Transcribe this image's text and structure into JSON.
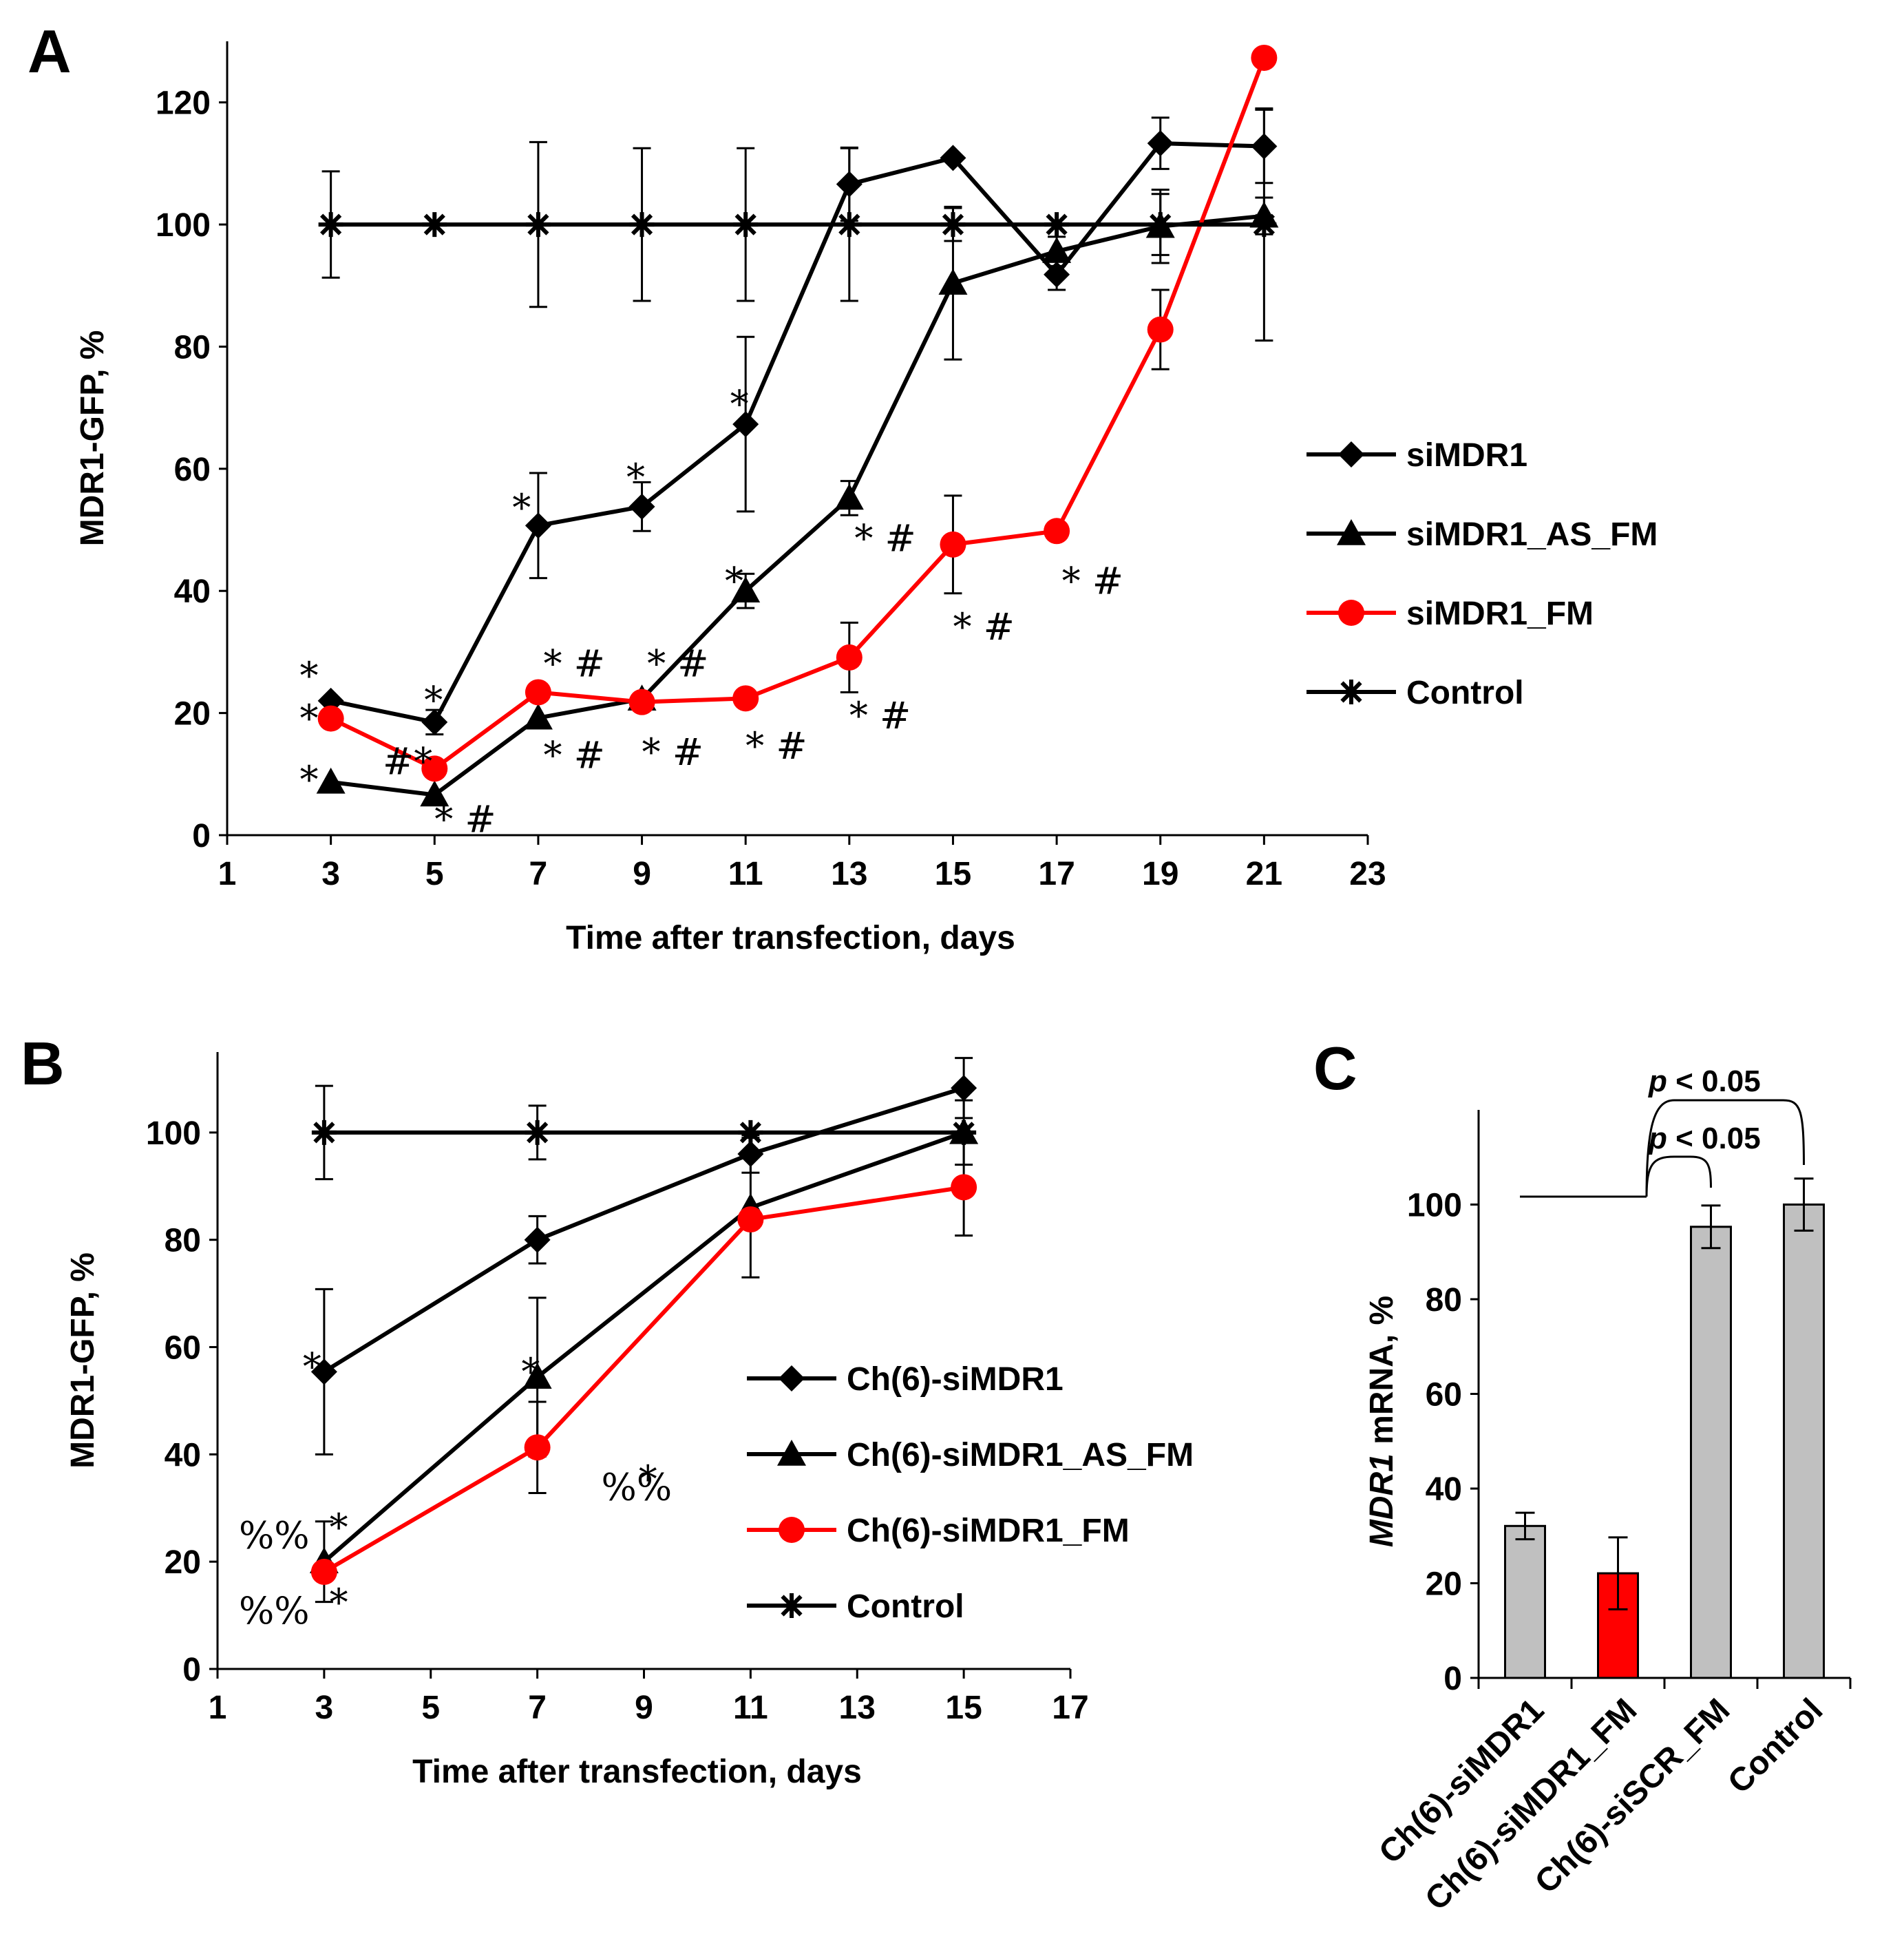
{
  "chart_data": [
    {
      "panel": "A",
      "type": "line",
      "xlabel": "Time after transfection, days",
      "ylabel": "MDR1-GFP, %",
      "xlim": [
        1,
        23
      ],
      "ylim": [
        0,
        130
      ],
      "xticks": [
        1,
        3,
        5,
        7,
        9,
        11,
        13,
        15,
        17,
        19,
        21,
        23
      ],
      "yticks": [
        0,
        20,
        40,
        60,
        80,
        100,
        120
      ],
      "series": [
        {
          "name": "siMDR1",
          "color": "#000000",
          "marker": "diamond",
          "x": [
            3,
            5,
            7,
            9,
            11,
            13,
            15,
            17,
            19,
            21
          ],
          "y": [
            22,
            18.5,
            50.7,
            53.8,
            67.3,
            106.6,
            110.9,
            91.8,
            113.3,
            112.8
          ],
          "err": [
            0,
            2,
            8.6,
            4,
            14.3,
            6,
            0,
            2.5,
            4.2,
            6
          ]
        },
        {
          "name": "siMDR1_AS_FM",
          "color": "#000000",
          "marker": "triangle",
          "x": [
            3,
            5,
            7,
            9,
            11,
            13,
            15,
            17,
            19,
            21
          ],
          "y": [
            8.7,
            6.6,
            19.2,
            22.3,
            40,
            55.2,
            90.4,
            95.6,
            99.7,
            101.4
          ],
          "err": [
            0,
            0,
            0,
            0,
            2.8,
            2.8,
            12.5,
            2.4,
            6,
            3
          ]
        },
        {
          "name": "siMDR1_FM",
          "color": "#ff0000",
          "marker": "circle",
          "x": [
            3,
            5,
            7,
            9,
            11,
            13,
            15,
            17,
            19,
            21
          ],
          "y": [
            19.1,
            10.9,
            23.4,
            21.8,
            22.4,
            29.1,
            47.6,
            49.8,
            82.8,
            127.3
          ],
          "err": [
            0,
            0,
            0,
            0,
            0,
            5.7,
            8,
            0,
            6.5,
            0
          ]
        },
        {
          "name": "Control",
          "color": "#000000",
          "marker": "star",
          "x": [
            3,
            5,
            7,
            9,
            11,
            13,
            15,
            17,
            19,
            21
          ],
          "y": [
            100,
            100,
            100,
            100,
            100,
            100,
            100,
            100,
            100,
            100
          ],
          "err": [
            8.7,
            0,
            13.5,
            12.5,
            12.5,
            12.5,
            2.7,
            0,
            5,
            19
          ]
        }
      ],
      "annotations": [
        {
          "text": "*",
          "x": 2.4,
          "y": 24
        },
        {
          "text": "*",
          "x": 2.4,
          "y": 17
        },
        {
          "text": "*",
          "x": 2.4,
          "y": 7
        },
        {
          "text": "*",
          "x": 4.8,
          "y": 20
        },
        {
          "text": "#*",
          "x": 4.0,
          "y": 10
        },
        {
          "text": "* #",
          "x": 5.0,
          "y": 0.5
        },
        {
          "text": "*",
          "x": 6.5,
          "y": 51.5
        },
        {
          "text": "* #",
          "x": 7.1,
          "y": 26
        },
        {
          "text": "* #",
          "x": 7.1,
          "y": 11
        },
        {
          "text": "*",
          "x": 8.7,
          "y": 56.5
        },
        {
          "text": "* #",
          "x": 9.1,
          "y": 26
        },
        {
          "text": "* #",
          "x": 9.0,
          "y": 11.5
        },
        {
          "text": "*",
          "x": 10.7,
          "y": 68.5
        },
        {
          "text": "*",
          "x": 10.6,
          "y": 39.5
        },
        {
          "text": "* #",
          "x": 11.0,
          "y": 12.5
        },
        {
          "text": "* #",
          "x": 13.1,
          "y": 46.5
        },
        {
          "text": "* #",
          "x": 13.0,
          "y": 17.5
        },
        {
          "text": "* #",
          "x": 15.0,
          "y": 32
        },
        {
          "text": "* #",
          "x": 17.1,
          "y": 39.5
        }
      ]
    },
    {
      "panel": "B",
      "type": "line",
      "xlabel": "Time after transfection, days",
      "ylabel": "MDR1-GFP, %",
      "xlim": [
        1,
        17
      ],
      "ylim": [
        0,
        115
      ],
      "xticks": [
        1,
        3,
        5,
        7,
        9,
        11,
        13,
        15,
        17
      ],
      "yticks": [
        0,
        20,
        40,
        60,
        80,
        100
      ],
      "series": [
        {
          "name": "Ch(6)-siMDR1",
          "color": "#000000",
          "marker": "diamond",
          "x": [
            3,
            7,
            11,
            15
          ],
          "y": [
            55.4,
            80,
            96,
            108.3
          ],
          "err": [
            15.4,
            4.4,
            3.5,
            5.6
          ]
        },
        {
          "name": "Ch(6)-siMDR1_AS_FM",
          "color": "#000000",
          "marker": "triangle",
          "x": [
            3,
            7,
            11,
            15
          ],
          "y": [
            20,
            54.4,
            86,
            100
          ],
          "err": [
            7.5,
            14.8,
            13,
            0
          ]
        },
        {
          "name": "Ch(6)-siMDR1_FM",
          "color": "#ff0000",
          "marker": "circle",
          "x": [
            3,
            7,
            11,
            15
          ],
          "y": [
            18.1,
            41.3,
            83.8,
            89.8
          ],
          "err": [
            0,
            8.5,
            0,
            9
          ]
        },
        {
          "name": "Control",
          "color": "#000000",
          "marker": "star",
          "x": [
            3,
            7,
            11,
            15
          ],
          "y": [
            100,
            100,
            100,
            100
          ],
          "err": [
            8.7,
            5,
            0,
            6
          ]
        }
      ],
      "annotations": [
        {
          "text": "*",
          "x": 2.6,
          "y": 54
        },
        {
          "text": "*",
          "x": 6.7,
          "y": 53
        },
        {
          "text": "%%",
          "x": 8.2,
          "y": 31.5
        },
        {
          "text": "*",
          "x": 8.9,
          "y": 33
        },
        {
          "text": "%%",
          "x": 1.4,
          "y": 22.5
        },
        {
          "text": "*",
          "x": 3.1,
          "y": 24
        },
        {
          "text": "%%",
          "x": 1.4,
          "y": 8.5
        },
        {
          "text": "*",
          "x": 3.1,
          "y": 10
        }
      ]
    },
    {
      "panel": "C",
      "type": "bar",
      "ylabel_italic": "MDR1",
      "ylabel_rest": " mRNA, %",
      "ylim": [
        0,
        120
      ],
      "yticks": [
        0,
        20,
        40,
        60,
        80,
        100
      ],
      "categories": [
        "Ch(6)-siMDR1",
        "Ch(6)-siMDR1_FM",
        "Ch(6)-siSCR_FM",
        "Control"
      ],
      "values": [
        32.1,
        22.1,
        95.3,
        100
      ],
      "errors": [
        2.8,
        7.6,
        4.5,
        5.5
      ],
      "colors": [
        "#c0c0c0",
        "#ff0000",
        "#c0c0c0",
        "#c0c0c0"
      ],
      "significance": [
        {
          "label_italic": "p",
          "label_rest": " < 0.05",
          "to": "Ch(6)-siSCR_FM"
        },
        {
          "label_italic": "p",
          "label_rest": " < 0.05",
          "to": "Control"
        }
      ]
    }
  ],
  "panel_labels": [
    "A",
    "B",
    "C"
  ]
}
